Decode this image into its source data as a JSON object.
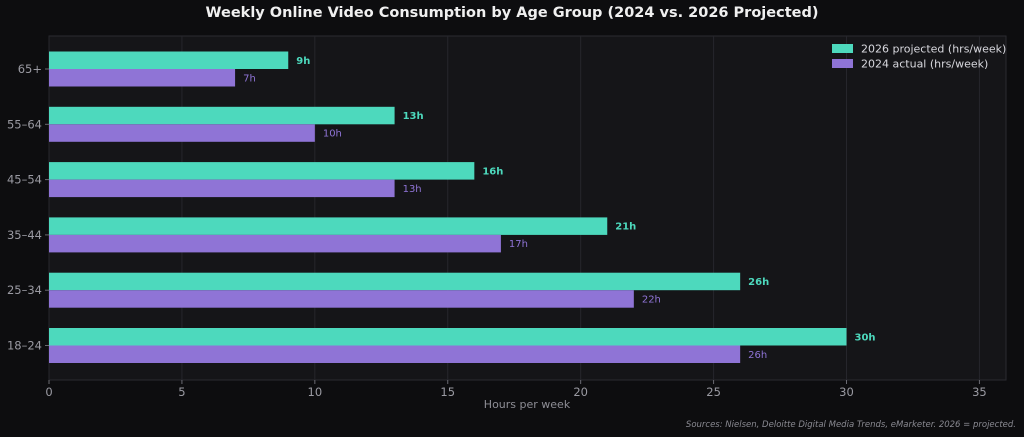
{
  "chart_data": {
    "type": "bar",
    "orientation": "horizontal",
    "title": "Weekly Online Video Consumption by Age Group (2024 vs. 2026 Projected)",
    "xlabel": "Hours per week",
    "ylabel": "",
    "xlim": [
      0,
      36
    ],
    "xticks": [
      "0",
      "5",
      "10",
      "15",
      "20",
      "25",
      "30",
      "35"
    ],
    "xtick_values": [
      0,
      5,
      10,
      15,
      20,
      25,
      30,
      35
    ],
    "categories": [
      "65+",
      "55–64",
      "45–54",
      "35–44",
      "25–34",
      "18–24"
    ],
    "series": [
      {
        "name": "2026 projected (hrs/week)",
        "color": "#4dd9bd",
        "values": [
          9,
          13,
          16,
          21,
          26,
          30
        ],
        "labels": [
          "9h",
          "13h",
          "16h",
          "21h",
          "26h",
          "30h"
        ]
      },
      {
        "name": "2024 actual (hrs/week)",
        "color": "#8f74d6",
        "values": [
          7,
          10,
          13,
          17,
          22,
          26
        ],
        "labels": [
          "7h",
          "10h",
          "13h",
          "17h",
          "22h",
          "26h"
        ]
      }
    ],
    "grid": true,
    "legend_position": "top-right",
    "source": "Sources: Nielsen, Deloitte Digital Media Trends, eMarketer. 2026 = projected."
  }
}
